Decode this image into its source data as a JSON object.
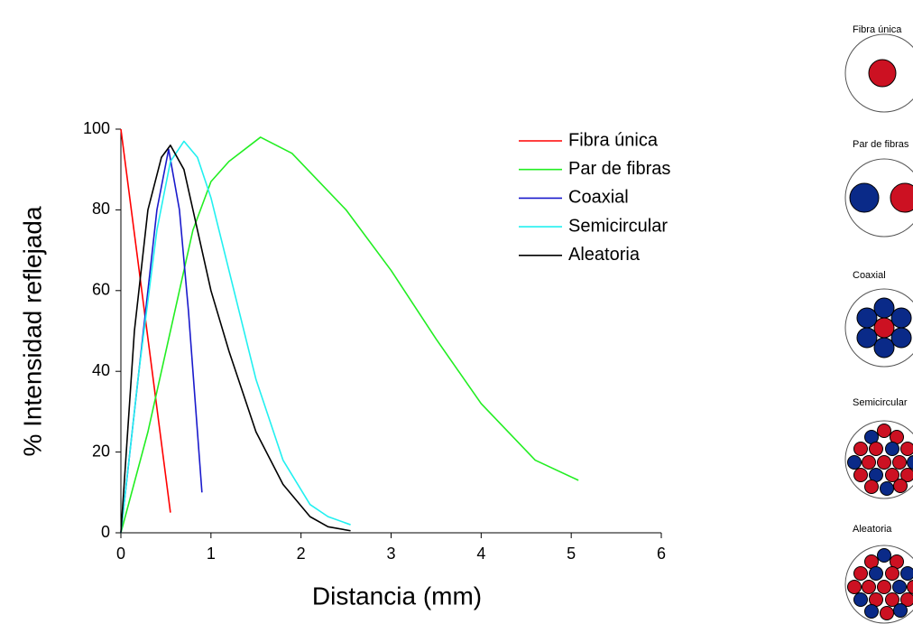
{
  "chart_data": {
    "type": "line",
    "x_label": "Distancia (mm)",
    "y_label": "% Intensidad reflejada",
    "xlim": [
      0,
      6
    ],
    "xticks": [
      0,
      1,
      2,
      3,
      4,
      5,
      6
    ],
    "ylim": [
      0,
      100
    ],
    "yticks": [
      0,
      20,
      40,
      60,
      80,
      100
    ],
    "legend": "upper right",
    "series": [
      {
        "name": "Fibra única",
        "color": "#ff0000",
        "x": [
          0,
          0.55
        ],
        "values": [
          100,
          5
        ]
      },
      {
        "name": "Par de fibras",
        "color": "#22ee22",
        "x": [
          0,
          0.3,
          0.6,
          0.8,
          1.0,
          1.2,
          1.55,
          1.9,
          2.5,
          3.0,
          3.5,
          4.0,
          4.6,
          5.08
        ],
        "values": [
          0,
          25,
          55,
          75,
          87,
          92,
          98,
          94,
          80,
          65,
          48,
          32,
          18,
          13
        ]
      },
      {
        "name": "Coaxial",
        "color": "#1a1acc",
        "x": [
          0,
          0.2,
          0.4,
          0.53,
          0.65,
          0.75,
          0.9
        ],
        "values": [
          0,
          40,
          80,
          95,
          80,
          55,
          10
        ]
      },
      {
        "name": "Semicircular",
        "color": "#22f0f0",
        "x": [
          0,
          0.2,
          0.4,
          0.55,
          0.7,
          0.85,
          1.0,
          1.2,
          1.5,
          1.8,
          2.1,
          2.3,
          2.55
        ],
        "values": [
          0,
          40,
          75,
          92,
          97,
          93,
          83,
          65,
          38,
          18,
          7,
          4,
          2
        ]
      },
      {
        "name": "Aleatoria",
        "color": "#000000",
        "x": [
          0,
          0.15,
          0.3,
          0.45,
          0.55,
          0.7,
          1.0,
          1.2,
          1.5,
          1.8,
          2.1,
          2.3,
          2.55
        ],
        "values": [
          0,
          50,
          80,
          93,
          96,
          90,
          60,
          45,
          25,
          12,
          4,
          1.5,
          0.5
        ]
      }
    ]
  },
  "fiber_diagrams": {
    "labels": [
      "Fibra única",
      "Par de fibras",
      "Coaxial",
      "Semicircular",
      "Aleatoria"
    ]
  }
}
